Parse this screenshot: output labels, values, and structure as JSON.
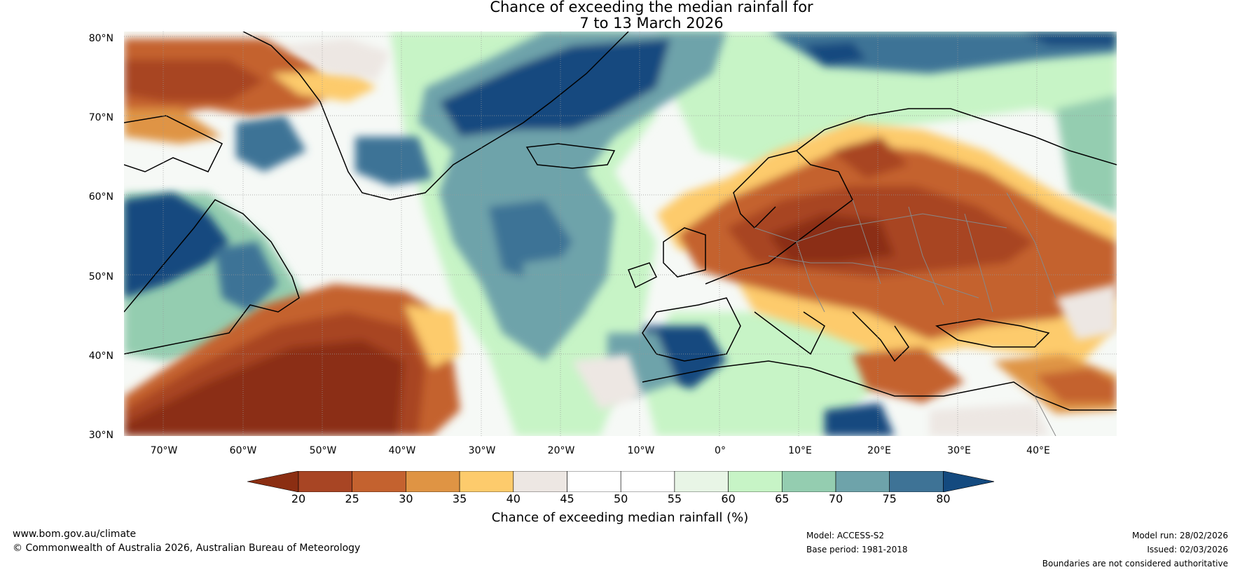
{
  "title_line1": "Chance of exceeding the median rainfall for",
  "title_line2": "7 to 13 March 2026",
  "lat_labels": [
    "80°N",
    "70°N",
    "60°N",
    "50°N",
    "40°N",
    "30°N"
  ],
  "lon_labels": [
    "70°W",
    "60°W",
    "50°W",
    "40°W",
    "30°W",
    "20°W",
    "10°W",
    "0°",
    "10°E",
    "20°E",
    "30°E",
    "40°E"
  ],
  "colorbar": {
    "label": "Chance of exceeding median rainfall (%)",
    "ticks": [
      "20",
      "25",
      "30",
      "35",
      "40",
      "45",
      "50",
      "55",
      "60",
      "65",
      "70",
      "75",
      "80"
    ],
    "colors": [
      "#8b2e12",
      "#a84524",
      "#c4622f",
      "#df9444",
      "#fdcb6c",
      "#ede7e3",
      "#ffffff",
      "#ffffff",
      "#e8f5e6",
      "#c7f4c6",
      "#94cdb0",
      "#6ea3aa",
      "#3e7396",
      "#144a7f"
    ]
  },
  "footer": {
    "website": "www.bom.gov.au/climate",
    "copyright": "© Commonwealth of Australia 2026, Australian Bureau of Meteorology",
    "model": "Model: ACCESS-S2",
    "base_period": "Base period: 1981-2018",
    "model_run": "Model run: 28/02/2026",
    "issued": "Issued: 02/03/2026",
    "disclaimer": "Boundaries are not considered authoritative"
  },
  "map_regions": [
    {
      "name": "atlantic-dry-region",
      "category": "below",
      "colors": [
        "#8b2e12",
        "#c4622f",
        "#fdcb6c"
      ]
    },
    {
      "name": "europe-dry-region",
      "category": "below",
      "colors": [
        "#8b2e12",
        "#c4622f",
        "#fdcb6c"
      ]
    },
    {
      "name": "greenland-dry-region",
      "category": "below",
      "colors": [
        "#c4622f",
        "#fdcb6c"
      ]
    },
    {
      "name": "north-atlantic-wet-region",
      "category": "above",
      "colors": [
        "#144a7f",
        "#3e7396",
        "#6ea3aa"
      ]
    },
    {
      "name": "labrador-wet-region",
      "category": "above",
      "colors": [
        "#144a7f",
        "#3e7396"
      ]
    },
    {
      "name": "mediterranean-wet-region",
      "category": "above",
      "colors": [
        "#144a7f",
        "#3e7396"
      ]
    }
  ]
}
